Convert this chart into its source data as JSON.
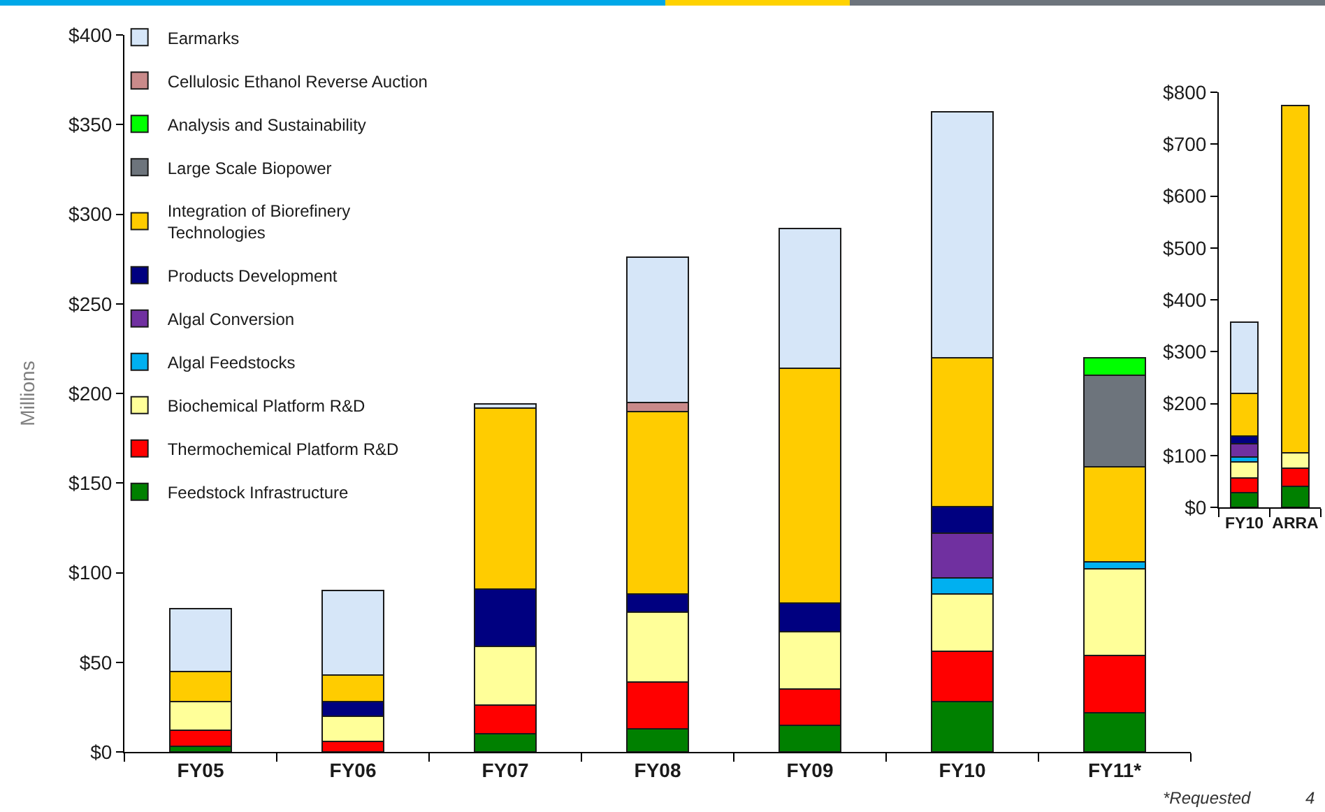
{
  "chart_data": [
    {
      "type": "bar",
      "stacked": true,
      "ylabel": "Millions",
      "legend": "top left",
      "categories": [
        "FY05",
        "FY06",
        "FY07",
        "FY08",
        "FY09",
        "FY10",
        "FY11*"
      ],
      "series": [
        {
          "name": "Feedstock Infrastructure",
          "color": "#008000",
          "values": [
            3,
            null,
            10,
            13,
            15,
            28,
            22
          ]
        },
        {
          "name": "Thermochemical Platform R&D",
          "color": "#ff0000",
          "values": [
            9,
            6,
            16,
            26,
            20,
            28,
            32
          ]
        },
        {
          "name": "Biochemical Platform R&D",
          "color": "#ffff99",
          "values": [
            16,
            14,
            33,
            39,
            32,
            32,
            48
          ]
        },
        {
          "name": "Algal Feedstocks",
          "color": "#00b0f0",
          "values": [
            null,
            null,
            null,
            null,
            null,
            9,
            4
          ]
        },
        {
          "name": "Algal Conversion",
          "color": "#7030a0",
          "values": [
            null,
            null,
            null,
            null,
            null,
            25,
            null
          ]
        },
        {
          "name": "Products Development",
          "color": "#000080",
          "values": [
            null,
            8,
            32,
            10,
            16,
            15,
            null
          ]
        },
        {
          "name": "Integration of Biorefinery Technologies",
          "color": "#ffcc00",
          "values": [
            17,
            15,
            101,
            102,
            131,
            83,
            53
          ]
        },
        {
          "name": "Large Scale Biopower",
          "color": "#6d747c",
          "values": [
            null,
            null,
            null,
            null,
            null,
            null,
            51
          ]
        },
        {
          "name": "Analysis and Sustainability",
          "color": "#00ff00",
          "values": [
            null,
            null,
            null,
            null,
            null,
            null,
            10
          ]
        },
        {
          "name": "Cellulosic Ethanol Reverse Auction",
          "color": "#c98a8a",
          "values": [
            null,
            null,
            null,
            5,
            null,
            null,
            null
          ]
        },
        {
          "name": "Earmarks",
          "color": "#d6e6f8",
          "values": [
            35,
            47,
            2,
            81,
            78,
            137,
            null
          ]
        }
      ],
      "ylim": [
        0,
        400
      ],
      "yticks": [
        {
          "value": 0,
          "label": "$0"
        },
        {
          "value": 50,
          "label": "$50"
        },
        {
          "value": 100,
          "label": "$100"
        },
        {
          "value": 150,
          "label": "$150"
        },
        {
          "value": 200,
          "label": "$200"
        },
        {
          "value": 250,
          "label": "$250"
        },
        {
          "value": 300,
          "label": "$300"
        },
        {
          "value": 350,
          "label": "$350"
        },
        {
          "value": 400,
          "label": "$400"
        }
      ],
      "annotations": [
        "*Requested",
        "4"
      ]
    },
    {
      "type": "bar",
      "stacked": true,
      "categories": [
        "FY10",
        "ARRA"
      ],
      "series": [
        {
          "color": "#008000",
          "values": [
            28,
            40
          ]
        },
        {
          "color": "#ff0000",
          "values": [
            28,
            35
          ]
        },
        {
          "color": "#ffff99",
          "values": [
            32,
            30
          ]
        },
        {
          "color": "#00b0f0",
          "values": [
            9,
            null
          ]
        },
        {
          "color": "#7030a0",
          "values": [
            25,
            null
          ]
        },
        {
          "color": "#000080",
          "values": [
            15,
            null
          ]
        },
        {
          "color": "#ffcc00",
          "values": [
            83,
            670
          ]
        },
        {
          "color": "#d6e6f8",
          "values": [
            137,
            null
          ]
        }
      ],
      "ylim": [
        0,
        800
      ],
      "yticks": [
        {
          "value": 0,
          "label": "$0"
        },
        {
          "value": 100,
          "label": "$100"
        },
        {
          "value": 200,
          "label": "$200"
        },
        {
          "value": 300,
          "label": "$300"
        },
        {
          "value": 400,
          "label": "$400"
        },
        {
          "value": 500,
          "label": "$500"
        },
        {
          "value": 600,
          "label": "$600"
        },
        {
          "value": 700,
          "label": "$700"
        },
        {
          "value": 800,
          "label": "$800"
        }
      ]
    }
  ]
}
